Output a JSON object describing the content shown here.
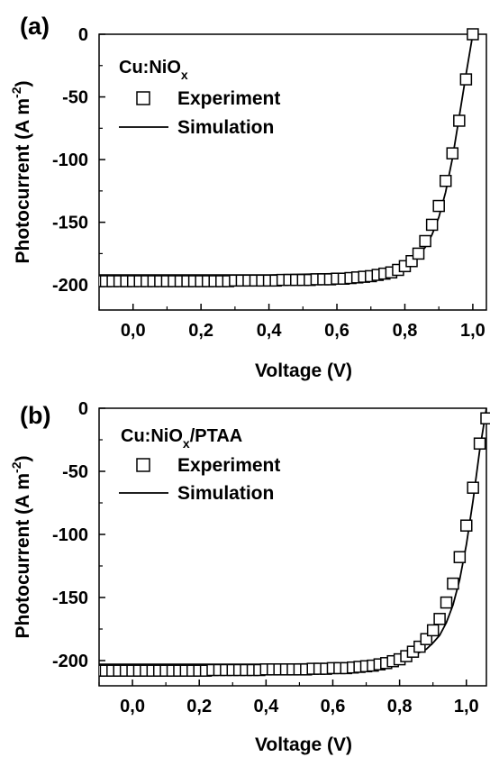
{
  "chart_data": [
    {
      "type": "line+scatter",
      "panel_label": "(a)",
      "sample_label": "Cu:NiO",
      "sample_sub": "x",
      "sample_suffix": "",
      "xlabel": "Voltage (V)",
      "ylabel": "Photocurrent (A m",
      "ylabel_sup": "-2",
      "ylabel_close": ")",
      "xlim": [
        -0.1,
        1.04
      ],
      "ylim": [
        -220,
        0
      ],
      "xticks": [
        0.0,
        0.2,
        0.4,
        0.6,
        0.8,
        1.0
      ],
      "xtick_labels": [
        "0,0",
        "0,2",
        "0,4",
        "0,6",
        "0,8",
        "1,0"
      ],
      "yticks": [
        0,
        -50,
        -100,
        -150,
        -200
      ],
      "ytick_labels": [
        "0",
        "-50",
        "-100",
        "-150",
        "-200"
      ],
      "legend": {
        "experiment": "Experiment",
        "simulation": "Simulation"
      },
      "series": [
        {
          "name": "Experiment",
          "style": "open-square",
          "x": [
            -0.1,
            -0.08,
            -0.06,
            -0.04,
            -0.02,
            0.0,
            0.02,
            0.04,
            0.06,
            0.08,
            0.1,
            0.12,
            0.14,
            0.16,
            0.18,
            0.2,
            0.22,
            0.24,
            0.26,
            0.28,
            0.3,
            0.32,
            0.34,
            0.36,
            0.38,
            0.4,
            0.42,
            0.44,
            0.46,
            0.48,
            0.5,
            0.52,
            0.54,
            0.56,
            0.58,
            0.6,
            0.62,
            0.64,
            0.66,
            0.68,
            0.7,
            0.72,
            0.74,
            0.76,
            0.78,
            0.8,
            0.82,
            0.84,
            0.86,
            0.88,
            0.9,
            0.92,
            0.94,
            0.96,
            0.98,
            1.0
          ],
          "y": [
            -197,
            -197,
            -197,
            -197,
            -197,
            -197,
            -197,
            -197,
            -197,
            -197,
            -197,
            -197,
            -197,
            -197,
            -197,
            -197,
            -197,
            -197,
            -197,
            -197,
            -196.5,
            -196.5,
            -196.5,
            -196.5,
            -196.5,
            -196.5,
            -196.5,
            -196,
            -196,
            -196,
            -196,
            -196,
            -195.5,
            -195.5,
            -195.5,
            -195,
            -195,
            -194.5,
            -194,
            -193.5,
            -193,
            -192,
            -191,
            -190,
            -188,
            -185,
            -181,
            -175,
            -165,
            -152,
            -137,
            -117,
            -95,
            -69,
            -36,
            0
          ]
        },
        {
          "name": "Simulation",
          "style": "line",
          "x": [
            -0.1,
            0.0,
            0.2,
            0.4,
            0.5,
            0.6,
            0.65,
            0.7,
            0.74,
            0.78,
            0.8,
            0.82,
            0.84,
            0.86,
            0.88,
            0.9,
            0.92,
            0.94,
            0.96,
            0.98,
            1.0
          ],
          "y": [
            -192,
            -192,
            -192,
            -192,
            -191.5,
            -191,
            -190.5,
            -189.5,
            -188,
            -186,
            -184,
            -181,
            -176,
            -170,
            -160,
            -146,
            -126,
            -99,
            -66,
            -32,
            0
          ]
        }
      ]
    },
    {
      "type": "line+scatter",
      "panel_label": "(b)",
      "sample_label": "Cu:NiO",
      "sample_sub": "x",
      "sample_suffix": "/PTAA",
      "xlabel": "Voltage (V)",
      "ylabel": "Photocurrent (A m",
      "ylabel_sup": "-2",
      "ylabel_close": ")",
      "xlim": [
        -0.1,
        1.06
      ],
      "ylim": [
        -220,
        0
      ],
      "xticks": [
        0.0,
        0.2,
        0.4,
        0.6,
        0.8,
        1.0
      ],
      "xtick_labels": [
        "0,0",
        "0,2",
        "0,4",
        "0,6",
        "0,8",
        "1,0"
      ],
      "yticks": [
        0,
        -50,
        -100,
        -150,
        -200
      ],
      "ytick_labels": [
        "0",
        "-50",
        "-100",
        "-150",
        "-200"
      ],
      "legend": {
        "experiment": "Experiment",
        "simulation": "Simulation"
      },
      "series": [
        {
          "name": "Experiment",
          "style": "open-square",
          "x": [
            -0.1,
            -0.08,
            -0.06,
            -0.04,
            -0.02,
            0.0,
            0.02,
            0.04,
            0.06,
            0.08,
            0.1,
            0.12,
            0.14,
            0.16,
            0.18,
            0.2,
            0.22,
            0.24,
            0.26,
            0.28,
            0.3,
            0.32,
            0.34,
            0.36,
            0.38,
            0.4,
            0.42,
            0.44,
            0.46,
            0.48,
            0.5,
            0.52,
            0.54,
            0.56,
            0.58,
            0.6,
            0.62,
            0.64,
            0.66,
            0.68,
            0.7,
            0.72,
            0.74,
            0.76,
            0.78,
            0.8,
            0.82,
            0.84,
            0.86,
            0.88,
            0.9,
            0.92,
            0.94,
            0.96,
            0.98,
            1.0,
            1.02,
            1.04,
            1.06
          ],
          "y": [
            -208,
            -208,
            -208,
            -208,
            -208,
            -208,
            -208,
            -208,
            -208,
            -208,
            -208,
            -208,
            -208,
            -208,
            -208,
            -208,
            -208,
            -207.5,
            -207.5,
            -207.5,
            -207.5,
            -207.5,
            -207.5,
            -207.5,
            -207.5,
            -207,
            -207,
            -207,
            -207,
            -207,
            -207,
            -207,
            -206.5,
            -206.5,
            -206.5,
            -206,
            -206,
            -206,
            -205.5,
            -205,
            -204.5,
            -204,
            -203,
            -202,
            -200.5,
            -199,
            -196.5,
            -193,
            -189,
            -183,
            -176,
            -167,
            -154,
            -139,
            -118,
            -93,
            -63,
            -28,
            -8
          ]
        },
        {
          "name": "Simulation",
          "style": "line",
          "x": [
            -0.1,
            0.0,
            0.2,
            0.4,
            0.6,
            0.7,
            0.75,
            0.8,
            0.84,
            0.88,
            0.9,
            0.92,
            0.94,
            0.96,
            0.98,
            1.0,
            1.02,
            1.04,
            1.06
          ],
          "y": [
            -203,
            -203,
            -203,
            -203,
            -202.5,
            -202,
            -201,
            -199,
            -196,
            -191,
            -186,
            -180,
            -170,
            -156,
            -136,
            -108,
            -73,
            -33,
            0
          ]
        }
      ]
    }
  ]
}
